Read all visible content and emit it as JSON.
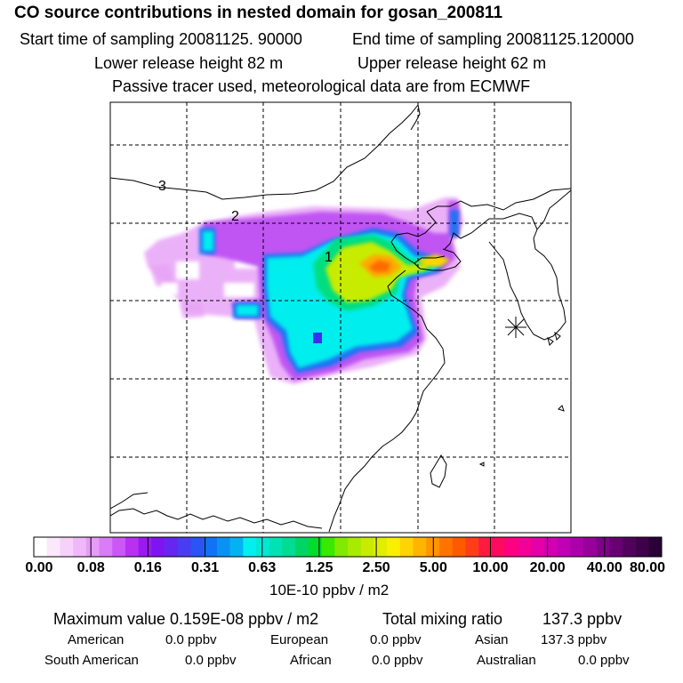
{
  "header": {
    "title": "CO  source contributions in nested domain for gosan_200811",
    "start_time": "Start time of sampling 20081125. 90000",
    "end_time": "End time of sampling 20081125.120000",
    "lower_release": "Lower release height   82 m",
    "upper_release": "Upper release height   62 m",
    "tracer_note": "Passive tracer used, meteorological data are from ECMWF"
  },
  "map": {
    "labels": [
      {
        "text": "3"
      },
      {
        "text": "2"
      },
      {
        "text": "1"
      }
    ]
  },
  "colorbar": {
    "tick_labels": [
      "0.00",
      "0.08",
      "0.16",
      "0.31",
      "0.63",
      "1.25",
      "2.50",
      "5.00",
      "10.00",
      "20.00",
      "40.00",
      "80.00"
    ],
    "colors": [
      "#ffffff",
      "#fbe8fb",
      "#f6d2fb",
      "#f0b8fb",
      "#e69cf8",
      "#da7cf6",
      "#cb58f4",
      "#b830f2",
      "#9a1af0",
      "#7f14f2",
      "#6426f0",
      "#4a3cf2",
      "#2a54f4",
      "#1272f4",
      "#0a92f2",
      "#04b2f2",
      "#00f0f0",
      "#00e8d4",
      "#00e2b4",
      "#00dc92",
      "#00d464",
      "#00dc2c",
      "#3ae800",
      "#80ea00",
      "#a8ea00",
      "#c8ec00",
      "#e2ee00",
      "#f8f000",
      "#ffd400",
      "#ffb400",
      "#ff9600",
      "#ff7400",
      "#ff5a00",
      "#ff3e18",
      "#ff1a40",
      "#ff0a5e",
      "#ff0082",
      "#f40096",
      "#e400a6",
      "#d200b0",
      "#c000b4",
      "#ac00aa",
      "#98009a",
      "#80008a",
      "#680074",
      "#52005e",
      "#3e004a",
      "#2a0036"
    ],
    "unit_label": "10E-10 ppbv / m2"
  },
  "stats": {
    "max_value": "Maximum value  0.159E-08 ppbv / m2",
    "total_mixing": "Total mixing ratio",
    "total_mixing_value": "137.3 ppbv",
    "american_label": "American",
    "american_value": "0.0 ppbv",
    "european_label": "European",
    "european_value": "0.0 ppbv",
    "asian_label": "Asian",
    "asian_value": "137.3 ppbv",
    "south_american_label": "South American",
    "south_american_value": "0.0 ppbv",
    "african_label": "African",
    "african_value": "0.0 ppbv",
    "australian_label": "Australian",
    "australian_value": "0.0 ppbv"
  }
}
